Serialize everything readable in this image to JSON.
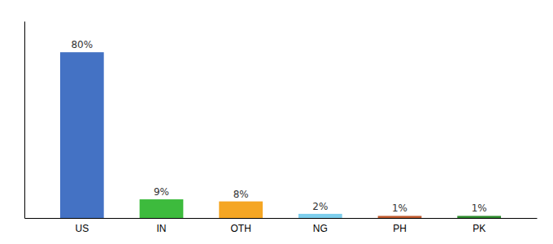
{
  "chart_data": {
    "type": "bar",
    "categories": [
      "US",
      "IN",
      "OTH",
      "NG",
      "PH",
      "PK"
    ],
    "values": [
      80,
      9,
      8,
      2,
      1,
      1
    ],
    "value_labels": [
      "80%",
      "9%",
      "8%",
      "2%",
      "1%",
      "1%"
    ],
    "colors": [
      "#4472c4",
      "#3dbb3d",
      "#f5a623",
      "#7ecfed",
      "#c05a2e",
      "#2e8b2e"
    ],
    "ylim": [
      0,
      95
    ],
    "data_labels": true,
    "tick_labels": "x",
    "grid": false
  }
}
